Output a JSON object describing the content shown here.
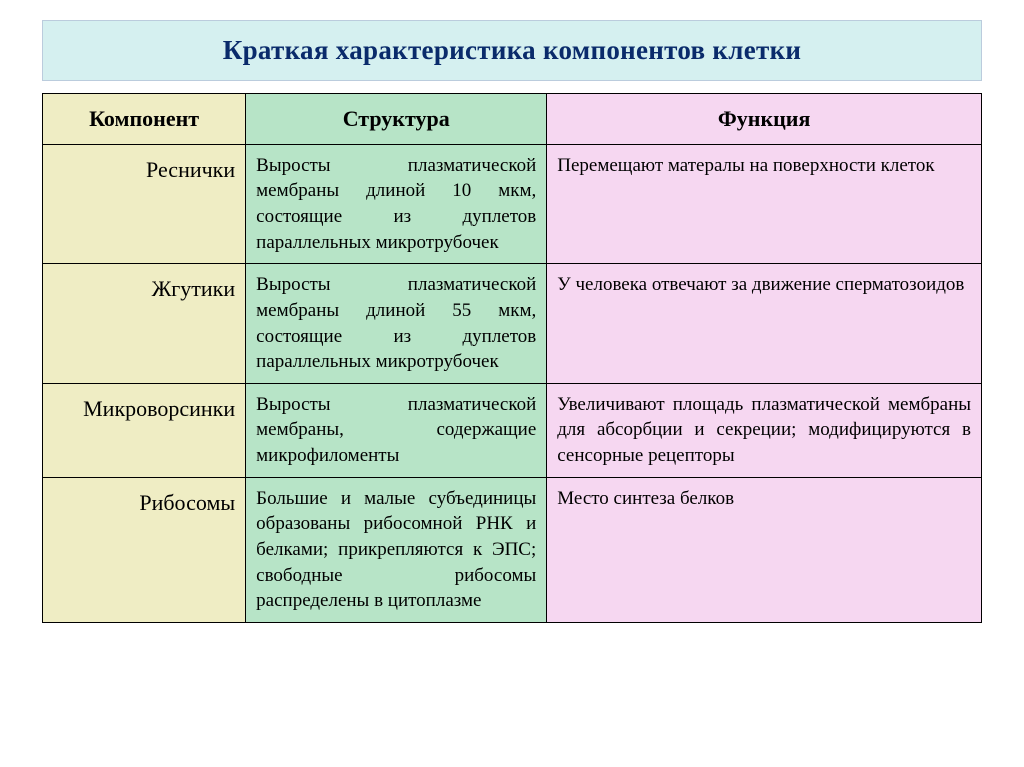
{
  "title": "Краткая характеристика компонентов клетки",
  "colors": {
    "title_bg": "#d5f0f0",
    "col_component_bg": "#efedc4",
    "col_structure_bg": "#b7e4c7",
    "col_function_bg": "#f6d7f1",
    "border": "#000000",
    "title_text": "#0a2b6b"
  },
  "typography": {
    "title_fontsize_pt": 20,
    "header_fontsize_pt": 16,
    "body_fontsize_pt": 14,
    "font_family": "Times New Roman"
  },
  "columns": [
    "Компонент",
    "Структура",
    "Функция"
  ],
  "column_widths_pct": [
    21,
    32,
    47
  ],
  "rows": [
    {
      "component": "Реснички",
      "structure": "Выросты плазматической мембраны длиной 10 мкм, состоящие из дуплетов параллельных микротрубочек",
      "function": "Перемещают матералы на поверхности клеток"
    },
    {
      "component": "Жгутики",
      "structure": "Выросты плазматической мембраны длиной 55 мкм, состоящие из дуплетов параллельных микротрубочек",
      "function": "У человека отвечают за движение сперматозоидов"
    },
    {
      "component": "Микроворсинки",
      "structure": "Выросты плазматической мембраны, содержащие микрофиломенты",
      "function": "Увеличивают площадь плазматической мембраны для абсорбции и секреции; модифицируются в сенсорные рецепторы"
    },
    {
      "component": "Рибосомы",
      "structure": "Большие и малые субъединицы образованы рибосомной РНК и белками; прикрепляются к ЭПС; свободные рибосомы распределены в цитоплазме",
      "function": "Место синтеза белков"
    }
  ]
}
